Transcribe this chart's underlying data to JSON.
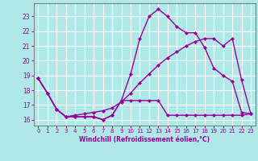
{
  "background_color": "#b0e8e8",
  "grid_color": "#ffffff",
  "line_color": "#990099",
  "markersize": 2.5,
  "linewidth": 1.0,
  "x_hours": [
    0,
    1,
    2,
    3,
    4,
    5,
    6,
    7,
    8,
    9,
    10,
    11,
    12,
    13,
    14,
    15,
    16,
    17,
    18,
    19,
    20,
    21,
    22,
    23
  ],
  "line_a": [
    18.8,
    17.8,
    16.7,
    16.2,
    16.2,
    16.2,
    16.2,
    16.0,
    16.3,
    17.3,
    19.1,
    21.5,
    23.0,
    23.5,
    23.0,
    22.3,
    21.9,
    21.9,
    20.9,
    19.5,
    19.0,
    18.6,
    16.5,
    16.4
  ],
  "line_b": [
    18.8,
    17.8,
    16.7,
    16.2,
    16.2,
    16.2,
    16.2,
    16.0,
    16.3,
    17.3,
    17.3,
    17.3,
    17.3,
    17.3,
    16.3,
    16.3,
    16.3,
    16.3,
    16.3,
    16.3,
    16.3,
    16.3,
    16.3,
    16.4
  ],
  "line_c": [
    18.8,
    17.8,
    16.7,
    16.2,
    16.3,
    16.4,
    16.5,
    16.6,
    16.8,
    17.2,
    17.8,
    18.5,
    19.1,
    19.7,
    20.2,
    20.6,
    21.0,
    21.3,
    21.5,
    21.5,
    21.0,
    21.5,
    18.7,
    16.4
  ],
  "ylim": [
    15.6,
    23.9
  ],
  "yticks": [
    16,
    17,
    18,
    19,
    20,
    21,
    22,
    23
  ],
  "xlabel": "Windchill (Refroidissement éolien,°C)"
}
